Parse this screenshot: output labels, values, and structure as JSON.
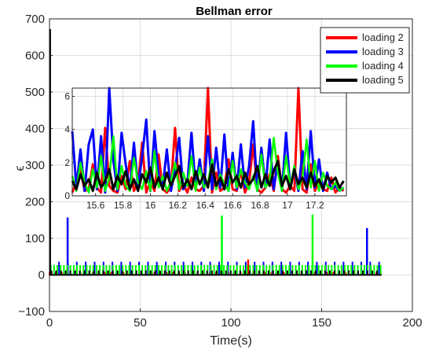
{
  "chart_data": [
    {
      "type": "line",
      "title": "Bellman error",
      "xlabel": "Time(s)",
      "ylabel": "ϵ",
      "xlim": [
        0,
        200
      ],
      "ylim": [
        -100,
        700
      ],
      "xticks": [
        0,
        50,
        100,
        150,
        200
      ],
      "yticks": [
        -100,
        0,
        100,
        200,
        300,
        400,
        500,
        600,
        700
      ],
      "grid": true,
      "legend_position": "top-right",
      "series": [
        {
          "name": "loading 2",
          "color": "#ff0000",
          "baseline": 0,
          "period": 3.4,
          "x_start": 0,
          "x_end": 183,
          "peak_value": 8,
          "spikes": [
            {
              "x": 109.5,
              "y": 42
            }
          ]
        },
        {
          "name": "loading 3",
          "color": "#0000ff",
          "baseline": 0,
          "period": 4.9,
          "x_start": 0,
          "x_end": 183,
          "peak_value": 36,
          "spikes": [
            {
              "x": 10,
              "y": 157
            },
            {
              "x": 175,
              "y": 128
            }
          ]
        },
        {
          "name": "loading 4",
          "color": "#00ff00",
          "baseline": 0,
          "period": 1.8,
          "x_start": 0,
          "x_end": 183,
          "peak_value": 27,
          "spikes": [
            {
              "x": 95,
              "y": 162
            },
            {
              "x": 145,
              "y": 165
            }
          ]
        },
        {
          "name": "loading 5",
          "color": "#000000",
          "baseline": 0,
          "period": 2.6,
          "x_start": 0,
          "x_end": 183,
          "peak_value": 12,
          "spikes": [
            {
              "x": 0.3,
              "y": 672
            }
          ]
        }
      ]
    },
    {
      "type": "line",
      "xlim": [
        15.43,
        17.43
      ],
      "ylim": [
        0,
        6.5
      ],
      "xticks": [
        15.6,
        15.8,
        16,
        16.2,
        16.4,
        16.6,
        16.8,
        17,
        17.2
      ],
      "xtick_labels": [
        "15.6",
        "15.8",
        "16",
        "16.2",
        "16.4",
        "16.6",
        "16.8",
        "17",
        "17.2"
      ],
      "yticks": [
        0,
        2,
        4,
        6
      ],
      "grid": true,
      "series": [
        {
          "name": "loading 2",
          "color": "#ff0000",
          "x": [
            15.43,
            15.46,
            15.49,
            15.52,
            15.55,
            15.58,
            15.61,
            15.64,
            15.67,
            15.7,
            15.73,
            15.76,
            15.79,
            15.82,
            15.85,
            15.88,
            15.91,
            15.94,
            15.97,
            16,
            16.03,
            16.06,
            16.09,
            16.12,
            16.15,
            16.18,
            16.21,
            16.24,
            16.27,
            16.3,
            16.33,
            16.36,
            16.39,
            16.42,
            16.45,
            16.48,
            16.51,
            16.54,
            16.57,
            16.6,
            16.63,
            16.66,
            16.69,
            16.72,
            16.75,
            16.78,
            16.81,
            16.84,
            16.87,
            16.9,
            16.93,
            16.96,
            16.99,
            17.02,
            17.05,
            17.08,
            17.11,
            17.14,
            17.17,
            17.2,
            17.23,
            17.26,
            17.29,
            17.32,
            17.35,
            17.38,
            17.41
          ],
          "y": [
            0.2,
            0.8,
            1.6,
            0.3,
            0.4,
            1.9,
            0.5,
            0.2,
            4.1,
            0.6,
            0.3,
            0.2,
            1.2,
            0.4,
            2.1,
            0.3,
            0.8,
            3.2,
            0.2,
            0.9,
            0.3,
            2.5,
            0.4,
            0.2,
            0.5,
            4.1,
            0.3,
            0.7,
            0.2,
            1.1,
            0.4,
            0.3,
            0.6,
            6.5,
            0.2,
            1.4,
            0.3,
            0.5,
            2.2,
            0.4,
            0.3,
            1.5,
            0.2,
            0.8,
            3.1,
            0.4,
            0.2,
            0.5,
            1.3,
            0.3,
            2.4,
            0.4,
            0.2,
            0.6,
            0.3,
            6.5,
            0.4,
            0.2,
            1.9,
            0.3,
            0.8,
            0.4,
            0.3,
            1.1,
            0.2,
            0.5,
            0.3
          ]
        },
        {
          "name": "loading 3",
          "color": "#0000ff",
          "x": [
            15.43,
            15.46,
            15.49,
            15.52,
            15.55,
            15.58,
            15.61,
            15.64,
            15.67,
            15.7,
            15.73,
            15.76,
            15.79,
            15.82,
            15.85,
            15.88,
            15.91,
            15.94,
            15.97,
            16,
            16.03,
            16.06,
            16.09,
            16.12,
            16.15,
            16.18,
            16.21,
            16.24,
            16.27,
            16.3,
            16.33,
            16.36,
            16.39,
            16.42,
            16.45,
            16.48,
            16.51,
            16.54,
            16.57,
            16.6,
            16.63,
            16.66,
            16.69,
            16.72,
            16.75,
            16.78,
            16.81,
            16.84,
            16.87,
            16.9,
            16.93,
            16.96,
            16.99,
            17.02,
            17.05,
            17.08,
            17.11,
            17.14,
            17.17,
            17.2,
            17.23,
            17.26,
            17.29,
            17.32,
            17.35,
            17.38,
            17.41
          ],
          "y": [
            3.9,
            0.5,
            2.8,
            0.3,
            3.1,
            4.0,
            0.4,
            3.6,
            0.2,
            6.5,
            2.1,
            0.3,
            3.8,
            1.9,
            0.4,
            3.2,
            0.5,
            2.4,
            4.6,
            0.3,
            3.9,
            1.2,
            0.5,
            2.8,
            0.3,
            1.6,
            3.5,
            0.4,
            0.8,
            3.8,
            0.5,
            2.2,
            0.3,
            3.6,
            0.4,
            2.9,
            0.5,
            3.7,
            0.3,
            2.6,
            0.4,
            3.1,
            0.5,
            1.8,
            4.5,
            0.3,
            2.9,
            0.5,
            3.4,
            0.4,
            2.1,
            0.3,
            3.8,
            0.5,
            1.6,
            0.3,
            2.7,
            0.4,
            3.9,
            0.5,
            2.2,
            0.3,
            1.4,
            0.4,
            0.6,
            0.3,
            0.5
          ]
        },
        {
          "name": "loading 4",
          "color": "#00ff00",
          "x": [
            15.43,
            15.46,
            15.49,
            15.52,
            15.55,
            15.58,
            15.61,
            15.64,
            15.67,
            15.7,
            15.73,
            15.76,
            15.79,
            15.82,
            15.85,
            15.88,
            15.91,
            15.94,
            15.97,
            16,
            16.03,
            16.06,
            16.09,
            16.12,
            16.15,
            16.18,
            16.21,
            16.24,
            16.27,
            16.3,
            16.33,
            16.36,
            16.39,
            16.42,
            16.45,
            16.48,
            16.51,
            16.54,
            16.57,
            16.6,
            16.63,
            16.66,
            16.69,
            16.72,
            16.75,
            16.78,
            16.81,
            16.84,
            16.87,
            16.9,
            16.93,
            16.96,
            16.99,
            17.02,
            17.05,
            17.08,
            17.11,
            17.14,
            17.17,
            17.2,
            17.23,
            17.26,
            17.29,
            17.32,
            17.35,
            17.38,
            17.41
          ],
          "y": [
            1.2,
            0.3,
            2.0,
            0.8,
            0.2,
            1.6,
            0.5,
            2.4,
            0.3,
            1.1,
            3.6,
            0.4,
            1.8,
            0.6,
            0.3,
            2.3,
            0.8,
            0.4,
            1.5,
            0.3,
            2.7,
            0.5,
            1.2,
            0.3,
            0.9,
            2.0,
            0.4,
            1.4,
            0.6,
            2.4,
            0.3,
            1.7,
            0.5,
            0.8,
            2.2,
            0.4,
            1.3,
            0.7,
            0.3,
            2.1,
            0.5,
            1.6,
            0.8,
            0.4,
            1.2,
            0.3,
            2.5,
            0.5,
            0.9,
            3.5,
            1.4,
            0.3,
            2.4,
            0.6,
            1.8,
            0.4,
            1.1,
            3.4,
            0.5,
            2.1,
            0.3,
            1.4,
            0.6,
            0.4,
            0.8,
            0.3,
            0.5
          ]
        },
        {
          "name": "loading 5",
          "color": "#000000",
          "x": [
            15.43,
            15.46,
            15.49,
            15.52,
            15.55,
            15.58,
            15.61,
            15.64,
            15.67,
            15.7,
            15.73,
            15.76,
            15.79,
            15.82,
            15.85,
            15.88,
            15.91,
            15.94,
            15.97,
            16,
            16.03,
            16.06,
            16.09,
            16.12,
            16.15,
            16.18,
            16.21,
            16.24,
            16.27,
            16.3,
            16.33,
            16.36,
            16.39,
            16.42,
            16.45,
            16.48,
            16.51,
            16.54,
            16.57,
            16.6,
            16.63,
            16.66,
            16.69,
            16.72,
            16.75,
            16.78,
            16.81,
            16.84,
            16.87,
            16.9,
            16.93,
            16.96,
            16.99,
            17.02,
            17.05,
            17.08,
            17.11,
            17.14,
            17.17,
            17.2,
            17.23,
            17.26,
            17.29,
            17.32,
            17.35,
            17.38,
            17.41
          ],
          "y": [
            0.9,
            0.4,
            1.3,
            0.6,
            1.0,
            0.3,
            1.4,
            0.5,
            0.9,
            1.6,
            0.4,
            1.2,
            0.7,
            1.5,
            0.4,
            1.0,
            0.3,
            1.3,
            0.8,
            1.7,
            0.5,
            1.1,
            0.4,
            1.4,
            0.6,
            1.2,
            1.8,
            0.5,
            1.0,
            0.4,
            1.5,
            0.7,
            1.3,
            0.5,
            1.9,
            0.6,
            1.1,
            0.4,
            1.6,
            0.8,
            1.2,
            0.5,
            1.4,
            0.7,
            1.0,
            1.8,
            0.5,
            1.3,
            0.6,
            1.5,
            2.1,
            0.6,
            1.2,
            0.4,
            1.6,
            0.7,
            1.1,
            0.5,
            1.4,
            0.6,
            1.0,
            0.4,
            1.2,
            0.8,
            1.1,
            0.5,
            0.9
          ]
        }
      ]
    }
  ]
}
